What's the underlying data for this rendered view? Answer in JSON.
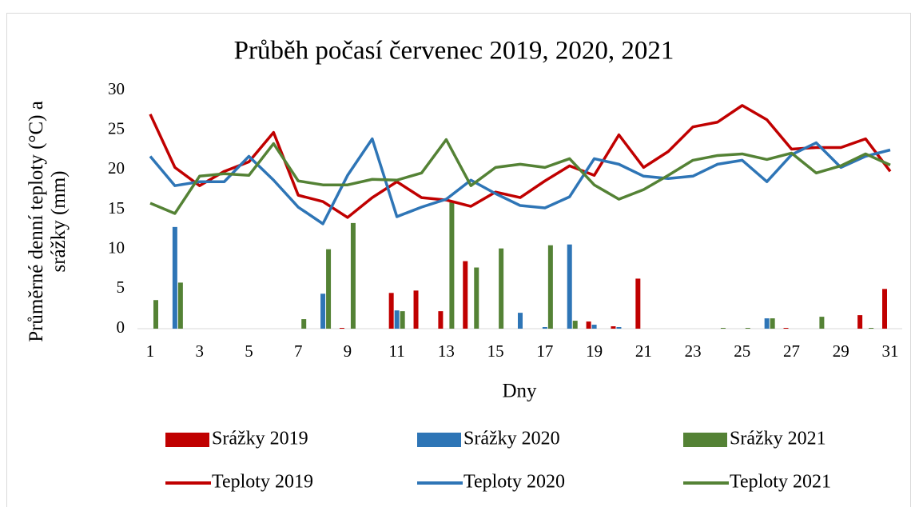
{
  "chart_data": {
    "type": "combo",
    "title": "Průběh počasí červenec 2019, 2020, 2021",
    "x_label": "Dny",
    "y_label": "Průměrné denní teploty (°C) a srážky (mm)",
    "categories": [
      1,
      null,
      3,
      null,
      5,
      null,
      7,
      null,
      9,
      null,
      11,
      null,
      13,
      null,
      15,
      null,
      17,
      null,
      19,
      null,
      21,
      null,
      23,
      null,
      25,
      null,
      27,
      null,
      29,
      null,
      31
    ],
    "ylim": [
      0,
      30
    ],
    "yticks": [
      0,
      5,
      10,
      15,
      20,
      25,
      30
    ],
    "grid": false,
    "series": [
      {
        "name": "Srážky 2019",
        "type": "bar",
        "color": "#c00000",
        "values": [
          0,
          0,
          0,
          0,
          0,
          0,
          0,
          0,
          0.1,
          0,
          4.5,
          4.8,
          2.2,
          8.5,
          0,
          0,
          0,
          0,
          0.9,
          0.3,
          6.3,
          0,
          0,
          0,
          0,
          0,
          0.1,
          0,
          0,
          1.7,
          5.0
        ]
      },
      {
        "name": "Srážky 2020",
        "type": "bar",
        "color": "#2e75b6",
        "values": [
          0,
          12.8,
          0,
          0,
          0,
          0,
          0,
          4.4,
          0,
          0,
          2.3,
          0,
          0,
          0,
          0,
          2.0,
          0.2,
          10.6,
          0.5,
          0.2,
          0,
          0,
          0,
          0,
          0,
          1.3,
          0,
          0,
          0,
          0,
          0
        ]
      },
      {
        "name": "Srážky 2021",
        "type": "bar",
        "color": "#548235",
        "values": [
          3.6,
          5.8,
          0,
          0,
          0,
          0,
          1.2,
          10.0,
          13.3,
          0,
          2.2,
          0,
          15.9,
          7.7,
          10.1,
          0,
          10.5,
          1.0,
          0,
          0,
          0,
          0,
          0,
          0.1,
          0.1,
          1.3,
          0,
          1.5,
          0,
          0.1,
          0
        ]
      },
      {
        "name": "Teploty 2019",
        "type": "line",
        "color": "#c00000",
        "values": [
          27,
          20.3,
          18,
          19.8,
          21,
          24.7,
          16.8,
          16,
          14,
          16.5,
          18.5,
          16.5,
          16.2,
          15.4,
          17.2,
          16.5,
          18.6,
          20.5,
          19.3,
          24.4,
          20.3,
          22.3,
          25.4,
          26,
          28.1,
          26.3,
          22.6,
          22.8,
          22.8,
          23.9,
          19.8
        ]
      },
      {
        "name": "Teploty 2020",
        "type": "line",
        "color": "#2e75b6",
        "values": [
          21.7,
          18,
          18.5,
          18.5,
          21.7,
          18.7,
          15.3,
          13.2,
          19.3,
          23.9,
          14.1,
          15.3,
          16.3,
          18.7,
          17,
          15.5,
          15.2,
          16.6,
          21.4,
          20.7,
          19.2,
          18.9,
          19.2,
          20.7,
          21.2,
          18.5,
          21.9,
          23.4,
          20.3,
          21.7,
          22.5
        ]
      },
      {
        "name": "Teploty 2021",
        "type": "line",
        "color": "#548235",
        "values": [
          15.8,
          14.5,
          19.2,
          19.5,
          19.3,
          23.3,
          18.6,
          18.1,
          18.1,
          18.8,
          18.7,
          19.6,
          23.8,
          18,
          20.3,
          20.7,
          20.3,
          21.4,
          18.1,
          16.3,
          17.5,
          19.3,
          21.2,
          21.8,
          22,
          21.3,
          22.1,
          19.6,
          20.5,
          22,
          20.6
        ]
      }
    ]
  }
}
